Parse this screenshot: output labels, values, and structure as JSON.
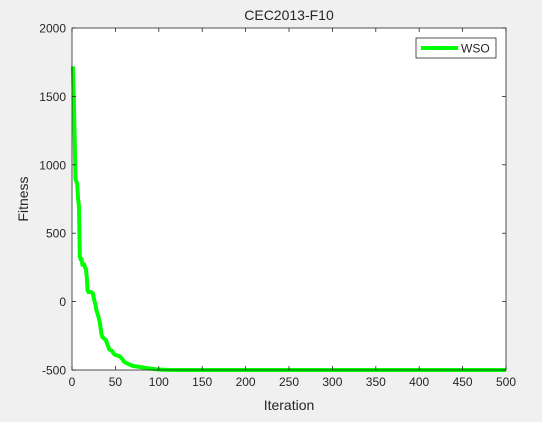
{
  "chart_data": {
    "type": "line",
    "title": "CEC2013-F10",
    "xlabel": "Iteration",
    "ylabel": "Fitness",
    "xlim": [
      0,
      500
    ],
    "ylim": [
      -500,
      2000
    ],
    "xticks": [
      0,
      50,
      100,
      150,
      200,
      250,
      300,
      350,
      400,
      450,
      500
    ],
    "yticks": [
      -500,
      0,
      500,
      1000,
      1500,
      2000
    ],
    "grid": false,
    "legend_position": "top-right",
    "series": [
      {
        "name": "WSO",
        "color": "#00ff00",
        "x": [
          1,
          2,
          3,
          4,
          5,
          6,
          7,
          8,
          9,
          10,
          11,
          12,
          14,
          15,
          16,
          17,
          18,
          19,
          20,
          22,
          24,
          26,
          27,
          28,
          30,
          32,
          34,
          35,
          37,
          39,
          40,
          43,
          46,
          48,
          50,
          55,
          58,
          60,
          63,
          70,
          80,
          90,
          100,
          110,
          120,
          150,
          200,
          300,
          400,
          500
        ],
        "y": [
          1720,
          1500,
          1220,
          900,
          880,
          860,
          750,
          700,
          330,
          310,
          310,
          270,
          270,
          250,
          240,
          180,
          80,
          70,
          70,
          70,
          60,
          0,
          -20,
          -60,
          -100,
          -150,
          -240,
          -260,
          -270,
          -280,
          -300,
          -350,
          -360,
          -380,
          -390,
          -400,
          -420,
          -440,
          -450,
          -470,
          -480,
          -490,
          -496,
          -499,
          -500,
          -500,
          -500,
          -500,
          -500,
          -500
        ]
      }
    ]
  }
}
